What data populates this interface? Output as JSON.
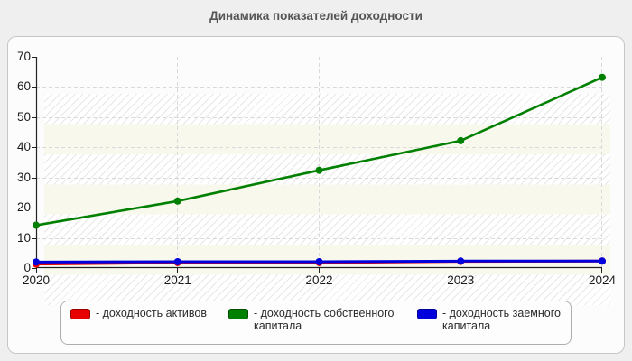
{
  "title": "Динамика показателей доходности",
  "chart_data": {
    "type": "line",
    "title": "Динамика показателей доходности",
    "categories": [
      "2020",
      "2021",
      "2022",
      "2023",
      "2024"
    ],
    "series": [
      {
        "name": "доходность активов",
        "color": "#e60000",
        "values": [
          1.3,
          1.8,
          1.8,
          2.2,
          2.3
        ]
      },
      {
        "name": "доходность собственного капитала",
        "color": "#008000",
        "values": [
          14.2,
          22.2,
          32.4,
          42.2,
          63.2
        ]
      },
      {
        "name": "доходность заемного капитала",
        "color": "#0000dd",
        "values": [
          2.0,
          2.1,
          2.1,
          2.3,
          2.3
        ]
      }
    ],
    "ylim": [
      0,
      70
    ],
    "yticks": [
      0,
      10,
      20,
      30,
      40,
      50,
      60,
      70
    ],
    "grid": true,
    "grid_style": "dashed",
    "legend_position": "bottom",
    "plot_band_color": "#f8f8ed",
    "gridline_color": "#d9d9d9",
    "axis_color": "#222222"
  },
  "legend": {
    "items": [
      {
        "label": "- доходность активов",
        "color": "#e60000",
        "border": "#990000"
      },
      {
        "label": "- доходность собственного капитала",
        "color": "#008000",
        "border": "#004d00"
      },
      {
        "label": "- доходность заемного капитала",
        "color": "#0000dd",
        "border": "#000099"
      }
    ]
  }
}
